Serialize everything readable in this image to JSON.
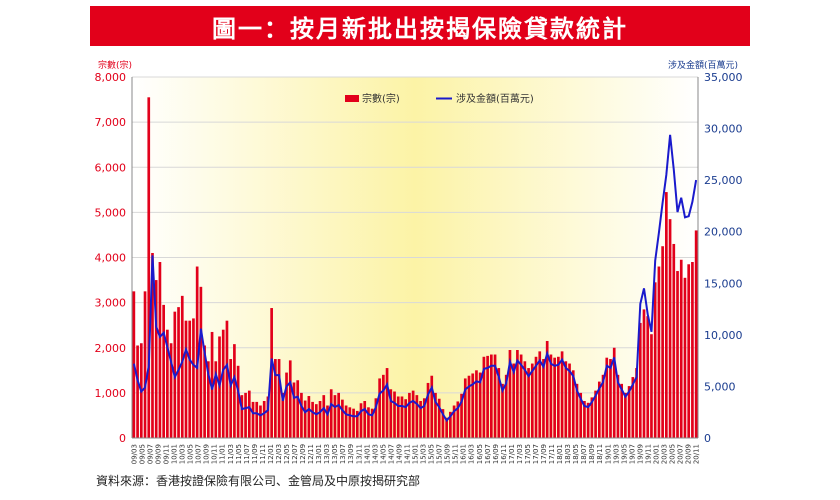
{
  "page": {
    "title": "圖一：按月新批出按揭保險貸款統計",
    "source": "資料來源：香港按證保險有限公司、金管局及中原按揭研究部"
  },
  "chart_data": {
    "type": "bar",
    "y_left_label": "宗數(宗)",
    "y_right_label": "涉及金額(百萬元)",
    "y_left_ticks": [
      "0",
      "1,000",
      "2,000",
      "3,000",
      "4,000",
      "5,000",
      "6,000",
      "7,000",
      "8,000"
    ],
    "y_right_ticks": [
      "0",
      "5,000",
      "10,000",
      "15,000",
      "20,000",
      "25,000",
      "30,000",
      "35,000"
    ],
    "y_left_range": [
      0,
      8000
    ],
    "y_right_range": [
      0,
      35000
    ],
    "legend_position": "top-center",
    "colors": {
      "bars": "#e2001a",
      "line": "#1a1acc",
      "bar_labels": "#5a5aff",
      "left_axis": "#e2001a",
      "right_axis": "#1a3c8f"
    },
    "x_labels": [
      "09/03",
      "09/05",
      "09/07",
      "09/09",
      "09/11",
      "10/01",
      "10/03",
      "10/05",
      "10/07",
      "10/09",
      "10/11",
      "11/01",
      "11/03",
      "11/05",
      "11/07",
      "11/09",
      "11/11",
      "12/01",
      "12/03",
      "12/05",
      "12/07",
      "12/09",
      "12/11",
      "13/01",
      "13/03",
      "13/05",
      "13/07",
      "13/09",
      "13/11",
      "14/01",
      "14/03",
      "14/05",
      "14/07",
      "14/09",
      "14/11",
      "15/01",
      "15/03",
      "15/05",
      "15/07",
      "15/09",
      "15/11",
      "16/01",
      "16/03",
      "16/05",
      "16/07",
      "16/09",
      "16/11",
      "17/01",
      "17/03",
      "17/05",
      "17/07",
      "17/09",
      "17/11",
      "18/01",
      "18/03",
      "18/05",
      "18/07",
      "18/09",
      "18/11",
      "19/01",
      "19/03",
      "19/05",
      "19/07",
      "19/09",
      "19/11",
      "20/01",
      "20/03",
      "20/05",
      "20/07",
      "20/09",
      "20/11"
    ],
    "series": [
      {
        "name": "宗數(宗)",
        "kind": "bar",
        "axis": "left",
        "values": [
          3250,
          2050,
          2100,
          3250,
          7550,
          4100,
          3500,
          3900,
          2950,
          2400,
          2100,
          2800,
          2900,
          3150,
          2600,
          2600,
          2650,
          3800,
          3350,
          2050,
          1700,
          2350,
          1700,
          2250,
          2400,
          2600,
          1750,
          2080,
          1600,
          950,
          1000,
          1050,
          800,
          800,
          720,
          820,
          920,
          2880,
          1750,
          1750,
          1000,
          1450,
          1720,
          1230,
          1280,
          1000,
          830,
          930,
          800,
          750,
          820,
          950,
          720,
          1080,
          950,
          1000,
          850,
          720,
          680,
          650,
          600,
          770,
          820,
          680,
          650,
          880,
          1320,
          1400,
          1550,
          1080,
          1030,
          920,
          920,
          860,
          1000,
          1050,
          950,
          820,
          880,
          1220,
          1380,
          1000,
          870,
          640,
          450,
          580,
          720,
          810,
          980,
          1320,
          1380,
          1430,
          1500,
          1450,
          1800,
          1820,
          1850,
          1850,
          1550,
          1200,
          1400,
          1950,
          1650,
          1950,
          1850,
          1700,
          1550,
          1650,
          1800,
          1920,
          1750,
          2150,
          1850,
          1780,
          1800,
          1920,
          1700,
          1650,
          1500,
          1200,
          1000,
          820,
          780,
          900,
          1050,
          1250,
          1400,
          1780,
          1750,
          2000,
          1400,
          1200,
          1000,
          1150,
          1350,
          1550,
          2550,
          2850,
          2700,
          2300,
          3450,
          3800,
          4250,
          5450,
          4850,
          4300,
          3700,
          3950,
          3550,
          3850,
          3900,
          4600
        ]
      },
      {
        "name": "涉及金額(百萬元)",
        "kind": "line",
        "axis": "right",
        "values": [
          7200,
          5600,
          4500,
          4900,
          7000,
          17700,
          10800,
          9800,
          10200,
          8800,
          7400,
          5900,
          6600,
          7400,
          8600,
          7600,
          7100,
          6800,
          10600,
          8300,
          6200,
          4700,
          6200,
          5100,
          6600,
          7100,
          5100,
          5900,
          4600,
          2800,
          2900,
          3000,
          2400,
          2400,
          2200,
          2400,
          2700,
          7700,
          6100,
          6100,
          3600,
          5000,
          5400,
          3900,
          4000,
          3100,
          2500,
          2800,
          2500,
          2300,
          2500,
          2900,
          2300,
          3300,
          3000,
          3200,
          2700,
          2300,
          2200,
          2100,
          2100,
          2600,
          2800,
          2300,
          2200,
          3000,
          4300,
          4600,
          5200,
          3600,
          3400,
          3100,
          3100,
          3000,
          3400,
          3600,
          3300,
          2900,
          3100,
          4200,
          4900,
          3500,
          3000,
          2300,
          1700,
          2100,
          2600,
          2900,
          3500,
          4700,
          5000,
          5200,
          5500,
          5400,
          6700,
          6800,
          7000,
          7000,
          5900,
          4600,
          5300,
          7400,
          6400,
          7500,
          7100,
          6600,
          6000,
          6500,
          7000,
          7500,
          6900,
          8200,
          7200,
          7000,
          7100,
          7600,
          6800,
          6500,
          6000,
          4600,
          3800,
          3100,
          3000,
          3500,
          4100,
          4800,
          5400,
          7000,
          6800,
          7800,
          5400,
          4700,
          4000,
          4500,
          5200,
          5900,
          13000,
          14500,
          12000,
          10300,
          17200,
          19900,
          22800,
          25500,
          29400,
          26000,
          21900,
          23300,
          21400,
          21500,
          22900,
          25000
        ]
      }
    ],
    "bar_value_labels_note": ""
  }
}
